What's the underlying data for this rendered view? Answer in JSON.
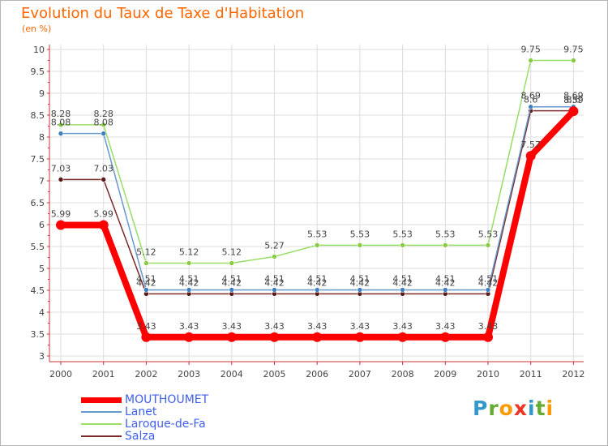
{
  "chart_data": {
    "type": "line",
    "title": "Evolution du Taux de Taxe d'Habitation",
    "unit": "(en %)",
    "xlabel": "",
    "ylabel": "",
    "ylim": [
      3,
      10
    ],
    "yticks": [
      "3",
      "3.5",
      "4",
      "4.5",
      "5",
      "5.5",
      "6",
      "6.5",
      "7",
      "7.5",
      "8",
      "8.5",
      "9",
      "9.5",
      "10"
    ],
    "categories": [
      "2000",
      "2001",
      "2002",
      "2003",
      "2004",
      "2005",
      "2006",
      "2007",
      "2008",
      "2009",
      "2010",
      "2011",
      "2012"
    ],
    "series": [
      {
        "name": "Salza",
        "color": "#7a2a2a",
        "dot": "#5a1a1a",
        "values": [
          7.03,
          7.03,
          4.42,
          4.42,
          4.42,
          4.42,
          4.42,
          4.42,
          4.42,
          4.42,
          4.42,
          8.6,
          8.6
        ],
        "labels": [
          "7.03",
          "7.03",
          "4.42",
          "4.42",
          "4.42",
          "4.42",
          "4.42",
          "4.42",
          "4.42",
          "4.42",
          "4.42",
          "8.6",
          "8.6"
        ]
      },
      {
        "name": "Laroque-de-Fa",
        "color": "#99dd66",
        "dot": "#88cc44",
        "values": [
          8.28,
          8.28,
          5.12,
          5.12,
          5.12,
          5.27,
          5.53,
          5.53,
          5.53,
          5.53,
          5.53,
          9.75,
          9.75
        ],
        "labels": [
          "8.28",
          "8.28",
          "5.12",
          "5.12",
          "5.12",
          "5.27",
          "5.53",
          "5.53",
          "5.53",
          "5.53",
          "5.53",
          "9.75",
          "9.75"
        ]
      },
      {
        "name": "Lanet",
        "color": "#6699cc",
        "dot": "#3f7fbf",
        "values": [
          8.08,
          8.08,
          4.51,
          4.51,
          4.51,
          4.51,
          4.51,
          4.51,
          4.51,
          4.51,
          4.51,
          8.69,
          8.69
        ],
        "labels": [
          "8.08",
          "8.08",
          "4.51",
          "4.51",
          "4.51",
          "4.51",
          "4.51",
          "4.51",
          "4.51",
          "4.51",
          "4.51",
          "8.69",
          "8.69"
        ]
      },
      {
        "name": "MOUTHOUMET",
        "color": "#ff0000",
        "dot": "#ff0000",
        "thick": true,
        "values": [
          5.99,
          5.99,
          3.43,
          3.43,
          3.43,
          3.43,
          3.43,
          3.43,
          3.43,
          3.43,
          3.43,
          7.57,
          8.59
        ],
        "labels": [
          "5.99",
          "5.99",
          "3.43",
          "3.43",
          "3.43",
          "3.43",
          "3.43",
          "3.43",
          "3.43",
          "3.43",
          "3.43",
          "7.57",
          "8.59"
        ]
      }
    ],
    "legend": [
      {
        "name": "MOUTHOUMET",
        "color": "#ff0000"
      },
      {
        "name": "Lanet",
        "color": "#6699cc"
      },
      {
        "name": "Laroque-de-Fa",
        "color": "#99dd66"
      },
      {
        "name": "Salza",
        "color": "#7a2a2a"
      }
    ]
  },
  "brand": {
    "letters": [
      {
        "ch": "P",
        "color": "#3399cc"
      },
      {
        "ch": "r",
        "color": "#66aa33"
      },
      {
        "ch": "o",
        "color": "#ff9900"
      },
      {
        "ch": "x",
        "color": "#ee3322"
      },
      {
        "ch": "i",
        "color": "#3399cc"
      },
      {
        "ch": "t",
        "color": "#66aa33"
      },
      {
        "ch": "i",
        "color": "#ff9900"
      }
    ]
  }
}
